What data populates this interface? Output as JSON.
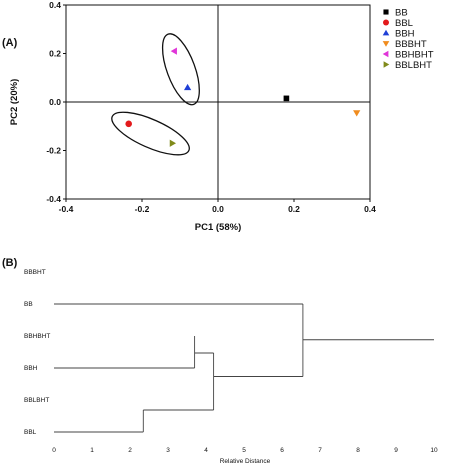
{
  "panels": {
    "a_label": "(A)",
    "b_label": "(B)"
  },
  "chart_data": [
    {
      "type": "scatter",
      "title": "",
      "xlabel": "PC1 (58%)",
      "ylabel": "PC2 (20%)",
      "xlim": [
        -0.4,
        0.4
      ],
      "ylim": [
        -0.4,
        0.4
      ],
      "xticks": [
        "-0.4",
        "-0.2",
        "0.0",
        "0.2",
        "0.4"
      ],
      "yticks": [
        "-0.4",
        "-0.2",
        "0.0",
        "0.2",
        "0.4"
      ],
      "grid": false,
      "zero_lines": true,
      "legend_position": "right",
      "series": [
        {
          "name": "BB",
          "marker": "square",
          "color": "#000000",
          "x": 0.18,
          "y": 0.015
        },
        {
          "name": "BBL",
          "marker": "circle",
          "color": "#e31a1c",
          "x": -0.235,
          "y": -0.09
        },
        {
          "name": "BBH",
          "marker": "triangle-up",
          "color": "#1f3fd6",
          "x": -0.08,
          "y": 0.06
        },
        {
          "name": "BBBHT",
          "marker": "triangle-down",
          "color": "#f08c1e",
          "x": 0.365,
          "y": -0.045
        },
        {
          "name": "BBHBHT",
          "marker": "triangle-left",
          "color": "#e035d8",
          "x": -0.115,
          "y": 0.21
        },
        {
          "name": "BBLBHT",
          "marker": "triangle-right",
          "color": "#808a1a",
          "x": -0.12,
          "y": -0.17
        }
      ],
      "groupings": [
        {
          "members": [
            "BBH",
            "BBHBHT"
          ]
        },
        {
          "members": [
            "BBL",
            "BBLBHT"
          ]
        }
      ]
    },
    {
      "type": "dendrogram",
      "title": "",
      "xlabel": "Relative Distance",
      "xlim": [
        0,
        10
      ],
      "xticks": [
        "0",
        "1",
        "2",
        "3",
        "4",
        "5",
        "6",
        "7",
        "8",
        "9",
        "10"
      ],
      "leaves": [
        "BBBHT",
        "BB",
        "BBHBHT",
        "BBH",
        "BBLBHT",
        "BBL"
      ],
      "merges": [
        {
          "left": "BBL",
          "right": "BBLBHT",
          "height": 2.35
        },
        {
          "left": "BBH",
          "right": "BBHBHT",
          "height": 3.7
        },
        {
          "left": "BBL+BBLBHT",
          "right": "BBH+BBHBHT",
          "height": 4.2
        },
        {
          "left": "BB",
          "right": "BBL+BBLBHT+BBH+BBHBHT",
          "height": 6.55
        },
        {
          "left": "all",
          "right": "BBBHT",
          "height": 10.0
        }
      ]
    }
  ]
}
